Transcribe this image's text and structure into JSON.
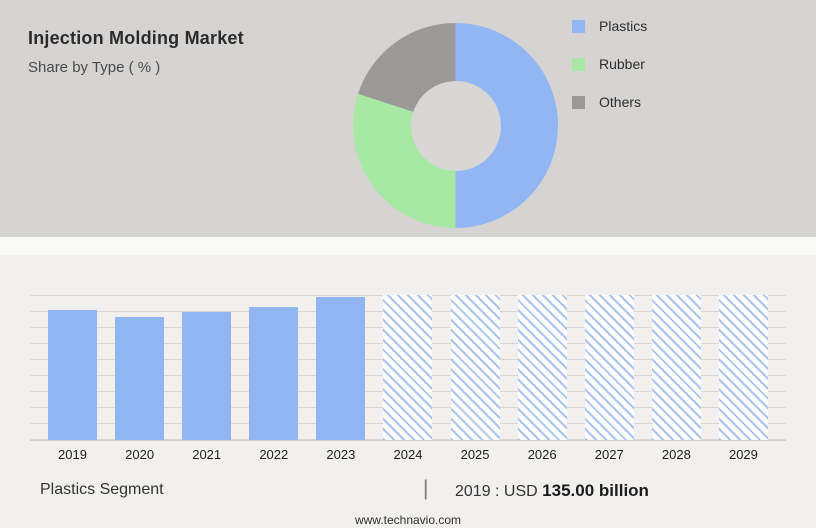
{
  "header": {
    "title": "Injection Molding Market",
    "subtitle": "Share by Type ( % )"
  },
  "chart_data": [
    {
      "type": "pie",
      "donut": true,
      "title": "Share by Type ( % )",
      "labels": [
        "Plastics",
        "Rubber",
        "Others"
      ],
      "values": [
        50,
        30,
        20
      ],
      "colors": [
        "#92b5f4",
        "#a6e8a4",
        "#9a9998"
      ],
      "legend_position": "right"
    },
    {
      "type": "bar",
      "title": "Plastics Segment",
      "categories": [
        "2019",
        "2020",
        "2021",
        "2022",
        "2023",
        "2024",
        "2025",
        "2026",
        "2027",
        "2028",
        "2029"
      ],
      "values": [
        135,
        127,
        132,
        138,
        148,
        null,
        null,
        null,
        null,
        null,
        null
      ],
      "forecast_categories": [
        "2024",
        "2025",
        "2026",
        "2027",
        "2028",
        "2029"
      ],
      "annotation": "2019 : USD 135.00 billion",
      "ylim": [
        0,
        150
      ],
      "grid": true,
      "bar_color": "#92b5f4",
      "forecast_style": "diagonal-hatch"
    }
  ],
  "footer": {
    "segment_label": "Plastics Segment",
    "separator": "|",
    "value_prefix": "2019 : USD",
    "value_bold": "135.00 billion",
    "website": "www.technavio.com"
  }
}
